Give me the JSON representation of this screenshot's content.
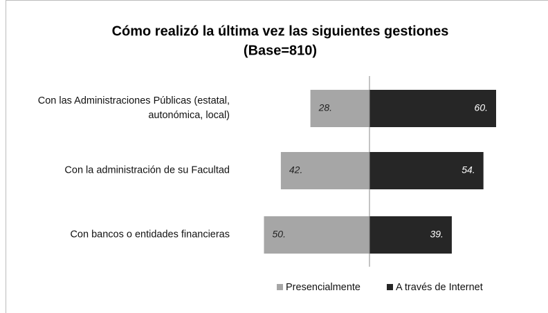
{
  "chart_data": {
    "type": "diverging-bar",
    "title": "Cómo realizó la última vez las siguientes gestiones",
    "subtitle": "(Base=810)",
    "categories": [
      "Con las Administraciones Públicas (estatal, autonómica, local)",
      "Con la administración de su Facultad",
      "Con bancos o entidades financieras"
    ],
    "series": [
      {
        "name": "Presencialmente",
        "color": "#a6a6a6",
        "values": [
          28,
          42,
          50
        ],
        "value_labels": [
          "28.",
          "42.",
          "50."
        ]
      },
      {
        "name": "A través de Internet",
        "color": "#262626",
        "values": [
          60,
          54,
          39
        ],
        "value_labels": [
          "60.",
          "54.",
          "39."
        ]
      }
    ],
    "legend": "bottom"
  }
}
